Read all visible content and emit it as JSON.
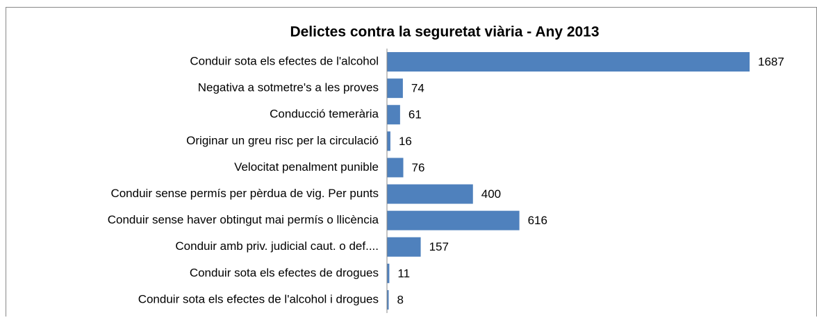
{
  "chart_data": {
    "type": "bar",
    "orientation": "horizontal",
    "title": "Delictes contra la seguretat viària - Any 2013",
    "categories": [
      "Conduir sota els efectes de l'alcohol",
      "Negativa a sotmetre's a les proves",
      "Conducció temerària",
      "Originar un greu risc per la circulació",
      "Velocitat penalment punible",
      "Conduir sense permís per pèrdua de vig. Per punts",
      "Conduir sense haver obtingut mai permís o llicència",
      "Conduir amb priv. judicial caut. o def....",
      "Conduir sota els efectes de drogues",
      "Conduir sota els efectes de l'alcohol i drogues"
    ],
    "values": [
      1687,
      74,
      61,
      16,
      76,
      400,
      616,
      157,
      11,
      8
    ],
    "color": "#4f81bd"
  }
}
